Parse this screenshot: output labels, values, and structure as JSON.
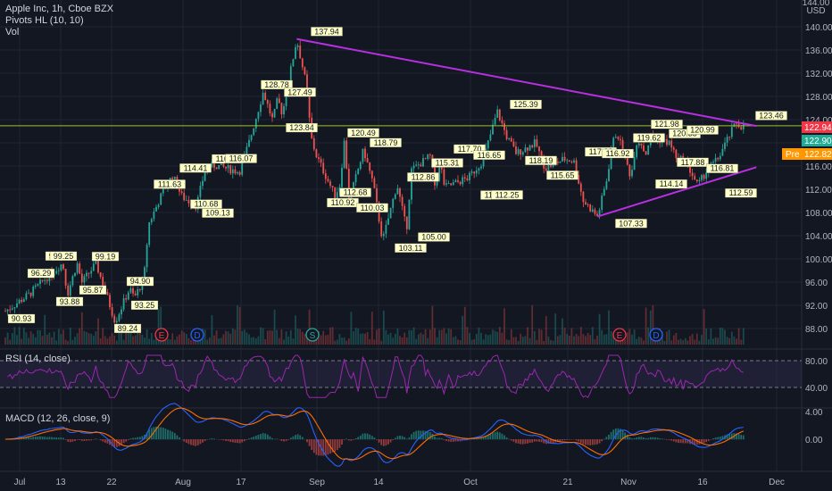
{
  "header": {
    "symbol_line": "Apple Inc, 1h, Cboe BZX",
    "indicator_pivots": "Pivots HL (10, 10)",
    "indicator_vol": "Vol",
    "rsi_label": "RSI (14, close)",
    "macd_label": "MACD (12, 26, close, 9)"
  },
  "price_axis": {
    "currency": "USD",
    "ticks": [
      140,
      136,
      132,
      128,
      124,
      120,
      116,
      112,
      108,
      104,
      100,
      96,
      92,
      88
    ],
    "tick_labels": [
      "140.00",
      "136.00",
      "132.00",
      "128.00",
      "124.00",
      "120.00",
      "116.00",
      "112.00",
      "108.00",
      "104.00",
      "100.00",
      "96.00",
      "92.00",
      "88.00"
    ],
    "top_label": "144.00"
  },
  "price_tags": [
    {
      "label": "122.94",
      "value": 122.94,
      "color": "#f23645"
    },
    {
      "label": "122.90",
      "value": 122.9,
      "color": "#22ab94"
    },
    {
      "label": "122.82",
      "value": 122.82,
      "color": "#ff9800",
      "prefix": "Pre"
    }
  ],
  "rsi_axis": {
    "ticks": [
      80,
      40
    ],
    "tick_labels": [
      "80.00",
      "40.00"
    ]
  },
  "macd_axis": {
    "ticks": [
      4,
      0
    ],
    "tick_labels": [
      "4.00",
      "0.00"
    ]
  },
  "time_axis": [
    "Jul",
    "13",
    "22",
    "Aug",
    "17",
    "Sep",
    "14",
    "Oct",
    "21",
    "Nov",
    "16",
    "Dec"
  ],
  "event_markers": [
    {
      "letter": "E",
      "color": "#f23645",
      "index": 6
    },
    {
      "letter": "D",
      "color": "#2962ff",
      "index": 7
    },
    {
      "letter": "S",
      "color": "#26a69a",
      "index": 12
    },
    {
      "letter": "E",
      "color": "#f23645",
      "index": 24
    },
    {
      "letter": "D",
      "color": "#2962ff",
      "index": 25
    }
  ],
  "chart_data": {
    "type": "candlestick",
    "symbol": "AAPL",
    "timeframe": "1h",
    "yrange": [
      86,
      142
    ],
    "x_labels": [
      "Jul",
      "13",
      "22",
      "Aug",
      "17",
      "Sep",
      "14",
      "Oct",
      "21",
      "Nov",
      "16",
      "Dec"
    ],
    "close_path": [
      {
        "x": "Jul 1",
        "y": 91.0
      },
      {
        "x": "Jul 6",
        "y": 93.9
      },
      {
        "x": "Jul 9",
        "y": 96.3
      },
      {
        "x": "Jul 13",
        "y": 99.3
      },
      {
        "x": "Jul 14",
        "y": 93.9
      },
      {
        "x": "Jul 16",
        "y": 99.3
      },
      {
        "x": "Jul 17",
        "y": 95.9
      },
      {
        "x": "Jul 20",
        "y": 99.2
      },
      {
        "x": "Jul 24",
        "y": 89.2
      },
      {
        "x": "Jul 27",
        "y": 94.9
      },
      {
        "x": "Jul 28",
        "y": 93.3
      },
      {
        "x": "Jul 30",
        "y": 96.5
      },
      {
        "x": "Jul 31",
        "y": 106.0
      },
      {
        "x": "Aug 3",
        "y": 111.6
      },
      {
        "x": "Aug 5",
        "y": 114.4
      },
      {
        "x": "Aug 7",
        "y": 110.7
      },
      {
        "x": "Aug 10",
        "y": 109.1
      },
      {
        "x": "Aug 12",
        "y": 116.0
      },
      {
        "x": "Aug 14",
        "y": 116.1
      },
      {
        "x": "Aug 19",
        "y": 115.0
      },
      {
        "x": "Aug 21",
        "y": 120.0
      },
      {
        "x": "Aug 24",
        "y": 128.8
      },
      {
        "x": "Aug 26",
        "y": 123.8
      },
      {
        "x": "Aug 27",
        "y": 127.5
      },
      {
        "x": "Aug 28",
        "y": 125.0
      },
      {
        "x": "Aug 31",
        "y": 137.9
      },
      {
        "x": "Sep 2",
        "y": 130.0
      },
      {
        "x": "Sep 3",
        "y": 121.0
      },
      {
        "x": "Sep 4",
        "y": 118.0
      },
      {
        "x": "Sep 8",
        "y": 110.9
      },
      {
        "x": "Sep 9",
        "y": 112.7
      },
      {
        "x": "Sep 10",
        "y": 120.5
      },
      {
        "x": "Sep 11",
        "y": 110.0
      },
      {
        "x": "Sep 14",
        "y": 118.8
      },
      {
        "x": "Sep 16",
        "y": 113.0
      },
      {
        "x": "Sep 18",
        "y": 103.1
      },
      {
        "x": "Sep 21",
        "y": 112.9
      },
      {
        "x": "Sep 23",
        "y": 105.0
      },
      {
        "x": "Sep 24",
        "y": 115.3
      },
      {
        "x": "Sep 28",
        "y": 117.7
      },
      {
        "x": "Sep 29",
        "y": 112.2
      },
      {
        "x": "Sep 30",
        "y": 116.7
      },
      {
        "x": "Oct 1",
        "y": 112.3
      },
      {
        "x": "Oct 6",
        "y": 114.0
      },
      {
        "x": "Oct 9",
        "y": 117.0
      },
      {
        "x": "Oct 12",
        "y": 125.4
      },
      {
        "x": "Oct 14",
        "y": 121.0
      },
      {
        "x": "Oct 16",
        "y": 118.2
      },
      {
        "x": "Oct 20",
        "y": 120.0
      },
      {
        "x": "Oct 22",
        "y": 115.7
      },
      {
        "x": "Oct 26",
        "y": 117.2
      },
      {
        "x": "Oct 28",
        "y": 116.9
      },
      {
        "x": "Oct 30",
        "y": 110.0
      },
      {
        "x": "Nov 2",
        "y": 107.3
      },
      {
        "x": "Nov 4",
        "y": 114.0
      },
      {
        "x": "Nov 5",
        "y": 119.6
      },
      {
        "x": "Nov 6",
        "y": 121.9
      },
      {
        "x": "Nov 9",
        "y": 114.1
      },
      {
        "x": "Nov 10",
        "y": 120.0
      },
      {
        "x": "Nov 11",
        "y": 120.3
      },
      {
        "x": "Nov 12",
        "y": 117.9
      },
      {
        "x": "Nov 13",
        "y": 121.0
      },
      {
        "x": "Nov 17",
        "y": 120.0
      },
      {
        "x": "Nov 19",
        "y": 116.8
      },
      {
        "x": "Nov 20",
        "y": 117.5
      },
      {
        "x": "Nov 23",
        "y": 112.6
      },
      {
        "x": "Nov 25",
        "y": 115.5
      },
      {
        "x": "Nov 27",
        "y": 117.0
      },
      {
        "x": "Dec 1",
        "y": 123.5
      },
      {
        "x": "Dec 2",
        "y": 122.9
      },
      {
        "x": "Dec 3",
        "y": 122.94
      }
    ],
    "pivots": [
      {
        "label": "90.93",
        "value": 90.93,
        "type": "low"
      },
      {
        "label": "96.29",
        "value": 96.29,
        "type": "high"
      },
      {
        "label": "99.25",
        "value": 99.25,
        "type": "high"
      },
      {
        "label": "99.25",
        "value": 99.25,
        "type": "high"
      },
      {
        "label": "93.88",
        "value": 93.88,
        "type": "low"
      },
      {
        "label": "95.87",
        "value": 95.87,
        "type": "low"
      },
      {
        "label": "99.19",
        "value": 99.19,
        "type": "high"
      },
      {
        "label": "89.24",
        "value": 89.24,
        "type": "low"
      },
      {
        "label": "94.90",
        "value": 94.9,
        "type": "high"
      },
      {
        "label": "93.25",
        "value": 93.25,
        "type": "low"
      },
      {
        "label": "111.63",
        "value": 111.63,
        "type": "high"
      },
      {
        "label": "114.41",
        "value": 114.41,
        "type": "high"
      },
      {
        "label": "110.68",
        "value": 110.68,
        "type": "low"
      },
      {
        "label": "109.13",
        "value": 109.13,
        "type": "low"
      },
      {
        "label": "116.00",
        "value": 116.0,
        "type": "high"
      },
      {
        "label": "116.07",
        "value": 116.07,
        "type": "high"
      },
      {
        "label": "128.78",
        "value": 128.78,
        "type": "high"
      },
      {
        "label": "127.49",
        "value": 127.49,
        "type": "high"
      },
      {
        "label": "123.84",
        "value": 123.84,
        "type": "low"
      },
      {
        "label": "137.94",
        "value": 137.94,
        "type": "high"
      },
      {
        "label": "110.92",
        "value": 110.92,
        "type": "low"
      },
      {
        "label": "112.68",
        "value": 112.68,
        "type": "low"
      },
      {
        "label": "120.49",
        "value": 120.49,
        "type": "high"
      },
      {
        "label": "110.03",
        "value": 110.03,
        "type": "low"
      },
      {
        "label": "118.79",
        "value": 118.79,
        "type": "high"
      },
      {
        "label": "103.11",
        "value": 103.11,
        "type": "low"
      },
      {
        "label": "112.86",
        "value": 112.86,
        "type": "high"
      },
      {
        "label": "105.00",
        "value": 105.0,
        "type": "low"
      },
      {
        "label": "115.31",
        "value": 115.31,
        "type": "high"
      },
      {
        "label": "117.70",
        "value": 117.7,
        "type": "high"
      },
      {
        "label": "116.65",
        "value": 116.65,
        "type": "high"
      },
      {
        "label": "112.23",
        "value": 112.23,
        "type": "low"
      },
      {
        "label": "112.25",
        "value": 112.25,
        "type": "low"
      },
      {
        "label": "125.39",
        "value": 125.39,
        "type": "high"
      },
      {
        "label": "118.19",
        "value": 118.19,
        "type": "low"
      },
      {
        "label": "115.65",
        "value": 115.65,
        "type": "low"
      },
      {
        "label": "117.22",
        "value": 117.22,
        "type": "high"
      },
      {
        "label": "116.92",
        "value": 116.92,
        "type": "high"
      },
      {
        "label": "107.33",
        "value": 107.33,
        "type": "low"
      },
      {
        "label": "119.62",
        "value": 119.62,
        "type": "high"
      },
      {
        "label": "121.98",
        "value": 121.98,
        "type": "high"
      },
      {
        "label": "114.14",
        "value": 114.14,
        "type": "low"
      },
      {
        "label": "120.35",
        "value": 120.35,
        "type": "high"
      },
      {
        "label": "120.99",
        "value": 120.99,
        "type": "high"
      },
      {
        "label": "117.88",
        "value": 117.88,
        "type": "low"
      },
      {
        "label": "116.81",
        "value": 116.81,
        "type": "low"
      },
      {
        "label": "112.59",
        "value": 112.59,
        "type": "low"
      },
      {
        "label": "123.46",
        "value": 123.46,
        "type": "high"
      }
    ],
    "horizontal_line": {
      "value": 122.94,
      "color": "#9cc12e"
    },
    "trendlines": [
      {
        "from": {
          "x": "Aug 31",
          "y": 137.9
        },
        "to": {
          "x": "Dec 3",
          "y": 122.9
        },
        "color": "#b72fe0"
      },
      {
        "from": {
          "x": "Nov 2",
          "y": 107.3
        },
        "to": {
          "x": "Dec 3",
          "y": 115.8
        },
        "color": "#b72fe0"
      }
    ],
    "rsi": {
      "upper": 80,
      "lower": 40,
      "ylim": [
        20,
        95
      ]
    },
    "macd": {
      "ylim": [
        -3.5,
        5.5
      ]
    },
    "grid": true
  }
}
